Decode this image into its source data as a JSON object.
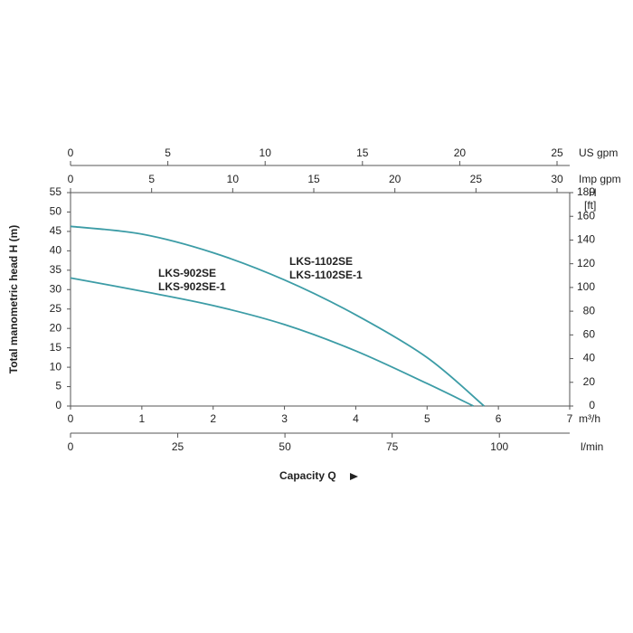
{
  "chart_data": {
    "type": "line",
    "xlabel": "Capacity Q",
    "xunit": "m³/h",
    "xlim": [
      0,
      7
    ],
    "xticks": [
      0,
      1,
      2,
      3,
      4,
      5,
      6,
      7
    ],
    "ylabel": "Total manometric head H (m)",
    "ylim": [
      0,
      55
    ],
    "yticks": [
      0,
      5,
      10,
      15,
      20,
      25,
      30,
      35,
      40,
      45,
      50,
      55
    ],
    "y2label": [
      "H",
      "[ft]"
    ],
    "y2lim": [
      0,
      180
    ],
    "y2ticks": [
      0,
      20,
      40,
      60,
      80,
      100,
      120,
      140,
      160,
      180
    ],
    "secondary_x_axes": [
      {
        "unit": "US gpm",
        "lim": [
          0,
          25.65
        ],
        "ticks": [
          0,
          5,
          10,
          15,
          20,
          25
        ]
      },
      {
        "unit": "Imp gpm",
        "lim": [
          0,
          30.78
        ],
        "ticks": [
          0,
          5,
          10,
          15,
          20,
          25,
          30
        ]
      },
      {
        "unit": "l/min",
        "lim": [
          0,
          116.4
        ],
        "ticks": [
          0,
          25,
          50,
          75,
          100
        ]
      }
    ],
    "series": [
      {
        "labels": [
          "LKS-902SE",
          "LKS-902SE-1"
        ],
        "color": "#3c9ca6",
        "x": [
          0,
          1,
          2,
          3,
          4,
          5,
          5.65
        ],
        "values": [
          33,
          29.6,
          25.9,
          21,
          14.2,
          5.8,
          0
        ]
      },
      {
        "labels": [
          "LKS-1102SE",
          "LKS-1102SE-1"
        ],
        "color": "#3c9ca6",
        "x": [
          0,
          1,
          2,
          3,
          4,
          5,
          5.8
        ],
        "values": [
          46.3,
          44.3,
          39.5,
          32.5,
          23.5,
          12.5,
          0
        ]
      }
    ]
  }
}
